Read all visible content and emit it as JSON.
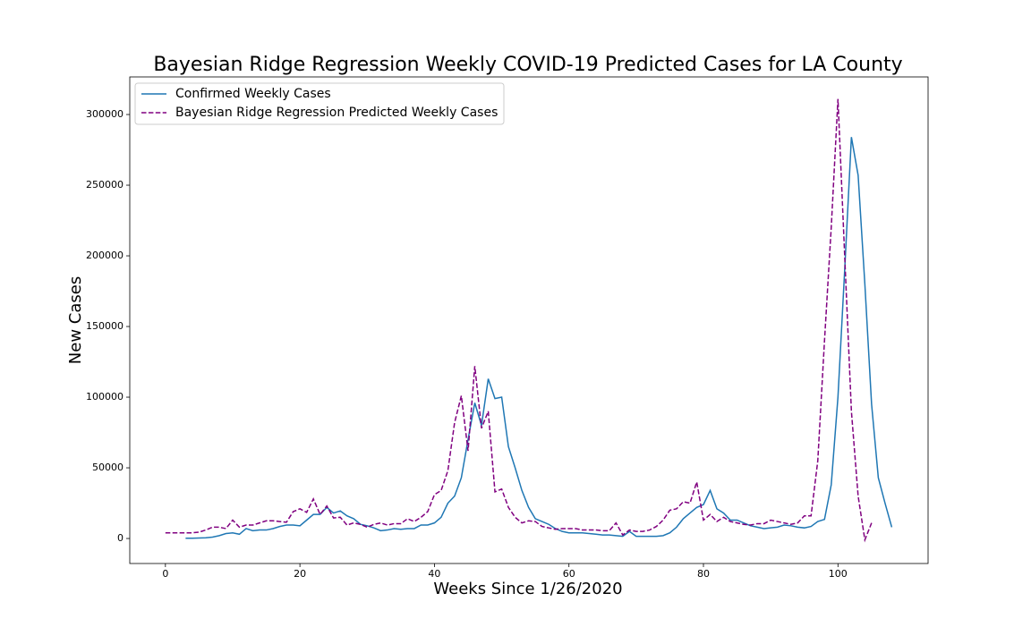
{
  "chart_data": {
    "type": "line",
    "title": "Bayesian Ridge Regression Weekly COVID-19 Predicted Cases for LA County",
    "x_label": "Weeks Since 1/26/2020",
    "y_label": "New Cases",
    "xlim": [
      -5.3,
      113.4
    ],
    "ylim": [
      -17700,
      326600
    ],
    "xticks": [
      0,
      20,
      40,
      60,
      80,
      100
    ],
    "yticks": [
      0,
      50000,
      100000,
      150000,
      200000,
      250000,
      300000
    ],
    "legend": "upper left",
    "series": [
      {
        "name": "Confirmed Weekly Cases",
        "color": "#1f77b4",
        "linestyle": "solid",
        "x": [
          3,
          4,
          5,
          6,
          7,
          8,
          9,
          10,
          11,
          12,
          13,
          14,
          15,
          16,
          17,
          18,
          19,
          20,
          21,
          22,
          23,
          24,
          25,
          26,
          27,
          28,
          29,
          30,
          31,
          32,
          33,
          34,
          35,
          36,
          37,
          38,
          39,
          40,
          41,
          42,
          43,
          44,
          45,
          46,
          47,
          48,
          49,
          50,
          51,
          52,
          53,
          54,
          55,
          56,
          57,
          58,
          59,
          60,
          61,
          62,
          63,
          64,
          65,
          66,
          67,
          68,
          69,
          70,
          71,
          72,
          73,
          74,
          75,
          76,
          77,
          78,
          79,
          80,
          81,
          82,
          83,
          84,
          85,
          86,
          87,
          88,
          89,
          90,
          91,
          92,
          93,
          94,
          95,
          96,
          97,
          98,
          99,
          100,
          101,
          102,
          103,
          104,
          105,
          106,
          107,
          108
        ],
        "values": [
          200,
          200,
          300,
          500,
          1000,
          2000,
          3500,
          4000,
          3000,
          7000,
          5500,
          6000,
          6000,
          7000,
          8500,
          9500,
          9500,
          9000,
          13000,
          17000,
          17000,
          22000,
          18000,
          19500,
          16000,
          14000,
          10000,
          9000,
          7500,
          5500,
          6000,
          7000,
          6500,
          7000,
          7000,
          9500,
          9500,
          11000,
          15000,
          25000,
          30000,
          43000,
          70000,
          96000,
          80000,
          113000,
          99000,
          100000,
          65000,
          50000,
          34000,
          22000,
          14000,
          12000,
          10000,
          7000,
          5000,
          4000,
          4000,
          4000,
          3500,
          3000,
          2500,
          2500,
          2000,
          1500,
          5000,
          1500,
          1500,
          1500,
          1500,
          2000,
          4000,
          8000,
          14000,
          18000,
          22000,
          24000,
          34000,
          21000,
          18000,
          13000,
          13000,
          11000,
          9000,
          8000,
          7000,
          7500,
          8000,
          9500,
          9000,
          8000,
          7500,
          8500,
          12000,
          13500,
          38000,
          100000,
          190000,
          284000,
          257000,
          180000,
          95000,
          43000,
          25000,
          8000
        ]
      },
      {
        "name": "Bayesian Ridge Regression Predicted Weekly Cases",
        "color": "#800080",
        "linestyle": "dashed",
        "x": [
          0,
          1,
          2,
          3,
          4,
          5,
          6,
          7,
          8,
          9,
          10,
          11,
          12,
          13,
          14,
          15,
          16,
          17,
          18,
          19,
          20,
          21,
          22,
          23,
          24,
          25,
          26,
          27,
          28,
          29,
          30,
          31,
          32,
          33,
          34,
          35,
          36,
          37,
          38,
          39,
          40,
          41,
          42,
          43,
          44,
          45,
          46,
          47,
          48,
          49,
          50,
          51,
          52,
          53,
          54,
          55,
          56,
          57,
          58,
          59,
          60,
          61,
          62,
          63,
          64,
          65,
          66,
          67,
          68,
          69,
          70,
          71,
          72,
          73,
          74,
          75,
          76,
          77,
          78,
          79,
          80,
          81,
          82,
          83,
          84,
          85,
          86,
          87,
          88,
          89,
          90,
          91,
          92,
          93,
          94,
          95,
          96,
          97,
          98,
          99,
          100,
          101,
          102,
          103,
          104,
          105
        ],
        "values": [
          4000,
          4000,
          4000,
          4000,
          4000,
          4500,
          6000,
          8000,
          8000,
          7000,
          13000,
          8000,
          9500,
          9500,
          11000,
          12500,
          12500,
          12000,
          11500,
          19000,
          21000,
          18500,
          28000,
          17000,
          23000,
          14500,
          15000,
          9500,
          11000,
          10000,
          8000,
          10000,
          11000,
          9500,
          10500,
          10500,
          14000,
          12000,
          15000,
          19000,
          31000,
          34000,
          48000,
          82000,
          101000,
          62000,
          122000,
          78000,
          90000,
          33000,
          35000,
          22000,
          15000,
          11000,
          12500,
          12000,
          8500,
          7500,
          6500,
          7000,
          7000,
          7000,
          6000,
          6000,
          6000,
          5500,
          5500,
          11000,
          2500,
          6000,
          5000,
          5000,
          6000,
          8500,
          13000,
          20000,
          21000,
          26000,
          25000,
          40000,
          13000,
          17000,
          12000,
          15000,
          12000,
          11000,
          10000,
          9500,
          10500,
          10500,
          13000,
          12000,
          11000,
          10000,
          11000,
          16000,
          16000,
          55000,
          140000,
          220000,
          311000,
          200000,
          90000,
          30000,
          -1000,
          11000
        ]
      }
    ]
  }
}
